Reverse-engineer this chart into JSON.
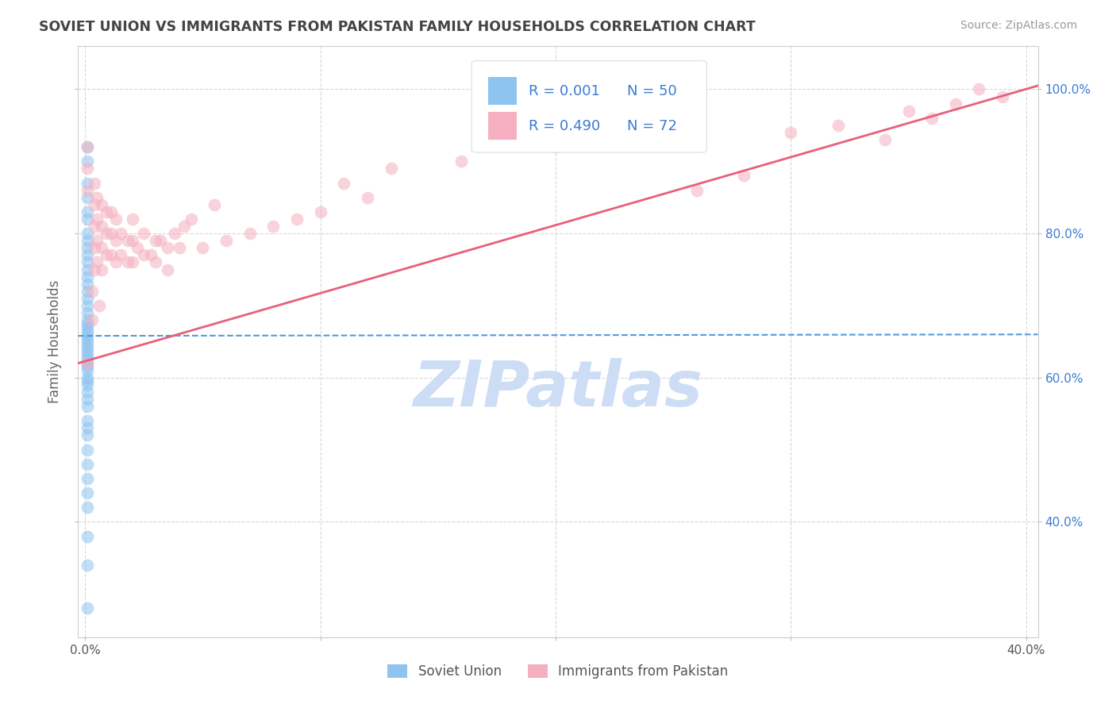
{
  "title": "SOVIET UNION VS IMMIGRANTS FROM PAKISTAN FAMILY HOUSEHOLDS CORRELATION CHART",
  "source": "Source: ZipAtlas.com",
  "ylabel": "Family Households",
  "xaxis_label_soviet": "Soviet Union",
  "xaxis_label_pakistan": "Immigrants from Pakistan",
  "y_ticks_right": [
    0.4,
    0.6,
    0.8,
    1.0
  ],
  "y_tick_labels_right": [
    "40.0%",
    "60.0%",
    "80.0%",
    "100.0%"
  ],
  "xlim": [
    -0.003,
    0.405
  ],
  "ylim": [
    0.24,
    1.06
  ],
  "blue_color": "#8ec4f0",
  "pink_color": "#f5afc0",
  "blue_line_color": "#5599dd",
  "pink_line_color": "#e8607a",
  "title_color": "#444444",
  "source_color": "#999999",
  "watermark_color": "#ccddf5",
  "legend_text_color": "#3a7bd5",
  "grid_color": "#d8d8d8",
  "legend_r1": "R = 0.001",
  "legend_n1": "N = 50",
  "legend_r2": "R = 0.490",
  "legend_n2": "N = 72",
  "soviet_x": [
    0.001,
    0.001,
    0.001,
    0.001,
    0.001,
    0.001,
    0.001,
    0.001,
    0.001,
    0.001,
    0.001,
    0.001,
    0.001,
    0.001,
    0.001,
    0.001,
    0.001,
    0.001,
    0.001,
    0.001,
    0.001,
    0.001,
    0.001,
    0.001,
    0.001,
    0.001,
    0.001,
    0.001,
    0.001,
    0.001,
    0.001,
    0.001,
    0.001,
    0.001,
    0.001,
    0.001,
    0.001,
    0.001,
    0.001,
    0.001,
    0.001,
    0.001,
    0.001,
    0.001,
    0.001,
    0.001,
    0.001,
    0.001,
    0.001,
    0.001
  ],
  "soviet_y": [
    0.92,
    0.9,
    0.87,
    0.85,
    0.83,
    0.82,
    0.8,
    0.79,
    0.78,
    0.77,
    0.76,
    0.75,
    0.74,
    0.73,
    0.72,
    0.71,
    0.7,
    0.69,
    0.68,
    0.675,
    0.67,
    0.665,
    0.66,
    0.655,
    0.65,
    0.645,
    0.64,
    0.635,
    0.63,
    0.625,
    0.62,
    0.615,
    0.61,
    0.6,
    0.595,
    0.59,
    0.58,
    0.57,
    0.56,
    0.54,
    0.53,
    0.52,
    0.5,
    0.48,
    0.46,
    0.44,
    0.42,
    0.38,
    0.34,
    0.28
  ],
  "pakistan_x": [
    0.001,
    0.001,
    0.001,
    0.001,
    0.004,
    0.004,
    0.004,
    0.004,
    0.004,
    0.005,
    0.005,
    0.005,
    0.005,
    0.007,
    0.007,
    0.007,
    0.007,
    0.009,
    0.009,
    0.009,
    0.011,
    0.011,
    0.011,
    0.013,
    0.013,
    0.013,
    0.015,
    0.015,
    0.018,
    0.018,
    0.02,
    0.02,
    0.02,
    0.025,
    0.025,
    0.03,
    0.03,
    0.035,
    0.035,
    0.04,
    0.05,
    0.06,
    0.07,
    0.08,
    0.09,
    0.1,
    0.12,
    0.003,
    0.003,
    0.006,
    0.022,
    0.028,
    0.032,
    0.038,
    0.042,
    0.045,
    0.055,
    0.11,
    0.13,
    0.16,
    0.2,
    0.25,
    0.3,
    0.32,
    0.35,
    0.37,
    0.39,
    0.38,
    0.36,
    0.34,
    0.28,
    0.26
  ],
  "pakistan_y": [
    0.92,
    0.89,
    0.86,
    0.62,
    0.87,
    0.84,
    0.81,
    0.78,
    0.75,
    0.85,
    0.82,
    0.79,
    0.76,
    0.84,
    0.81,
    0.78,
    0.75,
    0.83,
    0.8,
    0.77,
    0.83,
    0.8,
    0.77,
    0.82,
    0.79,
    0.76,
    0.8,
    0.77,
    0.79,
    0.76,
    0.82,
    0.79,
    0.76,
    0.8,
    0.77,
    0.79,
    0.76,
    0.78,
    0.75,
    0.78,
    0.78,
    0.79,
    0.8,
    0.81,
    0.82,
    0.83,
    0.85,
    0.72,
    0.68,
    0.7,
    0.78,
    0.77,
    0.79,
    0.8,
    0.81,
    0.82,
    0.84,
    0.87,
    0.89,
    0.9,
    0.92,
    0.93,
    0.94,
    0.95,
    0.97,
    0.98,
    0.99,
    1.0,
    0.96,
    0.93,
    0.88,
    0.86
  ],
  "blue_trend_x": [
    -0.003,
    0.405
  ],
  "blue_trend_y": [
    0.658,
    0.66
  ],
  "pink_trend_x": [
    -0.003,
    0.405
  ],
  "pink_trend_y": [
    0.62,
    1.005
  ],
  "watermark": "ZIPatlas"
}
